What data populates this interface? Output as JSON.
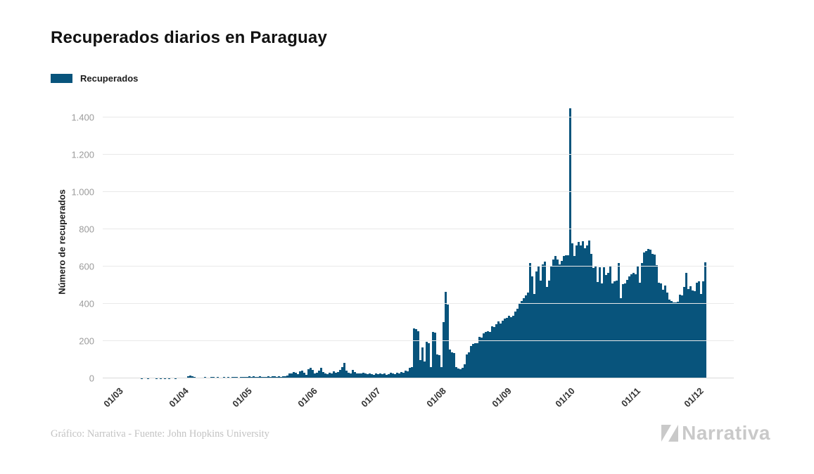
{
  "chart_data": {
    "type": "bar",
    "title": "Recuperados diarios en Paraguay",
    "ylabel": "Número de recuperados",
    "xlabel": "",
    "legend": [
      "Recuperados"
    ],
    "legend_position": "top-left",
    "grid": "horizontal",
    "bar_color": "#08547C",
    "grid_color": "#e9e9e9",
    "y_max": 1466,
    "y_ticks": [
      {
        "v": 0,
        "label": "0"
      },
      {
        "v": 200,
        "label": "200"
      },
      {
        "v": 400,
        "label": "400"
      },
      {
        "v": 600,
        "label": "600"
      },
      {
        "v": 800,
        "label": "800"
      },
      {
        "v": 1000,
        "label": "1.000"
      },
      {
        "v": 1200,
        "label": "1.200"
      },
      {
        "v": 1400,
        "label": "1.400"
      }
    ],
    "x_start": "01/03",
    "month_ticks": [
      {
        "label": "01/03",
        "day": 0
      },
      {
        "label": "01/04",
        "day": 31
      },
      {
        "label": "01/05",
        "day": 61
      },
      {
        "label": "01/06",
        "day": 92
      },
      {
        "label": "01/07",
        "day": 122
      },
      {
        "label": "01/08",
        "day": 153
      },
      {
        "label": "01/09",
        "day": 184
      },
      {
        "label": "01/10",
        "day": 214
      },
      {
        "label": "01/11",
        "day": 245
      },
      {
        "label": "01/12",
        "day": 275
      }
    ],
    "values": [
      0,
      0,
      0,
      0,
      0,
      0,
      0,
      0,
      0,
      1,
      0,
      0,
      1,
      0,
      0,
      2,
      1,
      0,
      1,
      2,
      1,
      2,
      1,
      2,
      2,
      1,
      2,
      3,
      2,
      3,
      4,
      12,
      14,
      10,
      6,
      4,
      5,
      3,
      4,
      6,
      3,
      5,
      7,
      6,
      4,
      7,
      5,
      3,
      6,
      4,
      8,
      5,
      6,
      8,
      7,
      5,
      8,
      6,
      9,
      7,
      10,
      8,
      10,
      9,
      7,
      11,
      8,
      6,
      9,
      12,
      8,
      10,
      13,
      9,
      11,
      8,
      12,
      10,
      14,
      28,
      26,
      35,
      30,
      24,
      38,
      42,
      31,
      20,
      50,
      56,
      44,
      25,
      30,
      42,
      55,
      35,
      28,
      22,
      32,
      26,
      38,
      30,
      35,
      45,
      60,
      85,
      40,
      30,
      25,
      45,
      35,
      28,
      28,
      26,
      30,
      25,
      22,
      28,
      24,
      20,
      26,
      22,
      25,
      22,
      28,
      20,
      24,
      30,
      26,
      22,
      32,
      28,
      35,
      30,
      42,
      38,
      55,
      60,
      270,
      265,
      255,
      100,
      165,
      90,
      195,
      190,
      60,
      250,
      245,
      130,
      125,
      62,
      302,
      465,
      398,
      155,
      140,
      135,
      60,
      52,
      50,
      55,
      75,
      130,
      140,
      172,
      185,
      190,
      188,
      224,
      220,
      243,
      250,
      252,
      248,
      280,
      277,
      291,
      307,
      295,
      310,
      321,
      325,
      336,
      330,
      336,
      360,
      373,
      404,
      415,
      430,
      445,
      460,
      618,
      547,
      453,
      573,
      600,
      524,
      611,
      628,
      490,
      527,
      605,
      637,
      656,
      640,
      611,
      630,
      656,
      660,
      662,
      1450,
      724,
      656,
      713,
      732,
      715,
      735,
      700,
      713,
      740,
      668,
      593,
      605,
      517,
      598,
      512,
      598,
      555,
      565,
      605,
      510,
      522,
      525,
      618,
      430,
      505,
      512,
      530,
      547,
      558,
      566,
      560,
      605,
      515,
      618,
      675,
      685,
      697,
      690,
      668,
      665,
      610,
      515,
      512,
      478,
      498,
      460,
      422,
      415,
      410,
      408,
      412,
      448,
      445,
      490,
      565,
      480,
      495,
      472,
      470,
      515,
      520,
      455,
      520,
      622
    ]
  },
  "footer": {
    "credit": "Gráfico: Narrativa - Fuente: John Hopkins University",
    "brand": "Narrativa"
  }
}
